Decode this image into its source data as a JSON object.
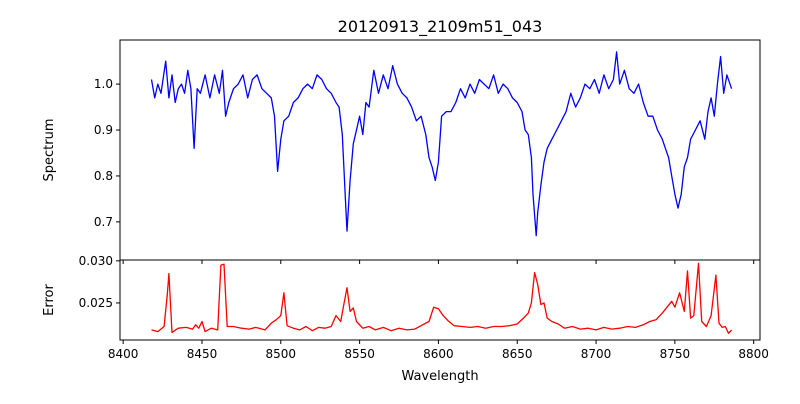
{
  "chart_data": [
    {
      "type": "line",
      "panel": "top",
      "title": "20120913_2109m51_043",
      "xlabel": "",
      "ylabel": "Spectrum",
      "xlim": [
        8398,
        8804
      ],
      "ylim": [
        0.617,
        1.096
      ],
      "xticks": [
        8400,
        8450,
        8500,
        8550,
        8600,
        8650,
        8700,
        8750,
        8800
      ],
      "yticks": [
        0.7,
        0.8,
        0.9,
        1.0
      ],
      "ytick_labels": [
        "0.7",
        "0.8",
        "0.9",
        "1.0"
      ],
      "grid": false,
      "series": [
        {
          "name": "Spectrum",
          "color": "#0000ff",
          "x": [
            8418,
            8420,
            8422,
            8424,
            8427,
            8429,
            8431,
            8433,
            8435,
            8437,
            8439,
            8441,
            8443,
            8445,
            8447,
            8449,
            8452,
            8455,
            8458,
            8461,
            8463,
            8465,
            8467,
            8470,
            8473,
            8476,
            8479,
            8482,
            8485,
            8488,
            8491,
            8494,
            8496,
            8498,
            8500,
            8502,
            8505,
            8508,
            8511,
            8514,
            8517,
            8520,
            8523,
            8526,
            8529,
            8532,
            8535,
            8537,
            8539,
            8541,
            8542,
            8544,
            8546,
            8548,
            8550,
            8552,
            8554,
            8556,
            8559,
            8562,
            8565,
            8568,
            8571,
            8574,
            8577,
            8580,
            8583,
            8586,
            8589,
            8592,
            8594,
            8596,
            8598,
            8600,
            8602,
            8605,
            8608,
            8611,
            8614,
            8617,
            8620,
            8623,
            8626,
            8629,
            8632,
            8635,
            8638,
            8641,
            8644,
            8647,
            8650,
            8653,
            8655,
            8657,
            8659,
            8660,
            8662,
            8663,
            8665,
            8667,
            8669,
            8672,
            8675,
            8678,
            8681,
            8684,
            8687,
            8690,
            8693,
            8696,
            8699,
            8702,
            8705,
            8708,
            8711,
            8713,
            8715,
            8718,
            8721,
            8724,
            8727,
            8730,
            8733,
            8736,
            8739,
            8742,
            8744,
            8746,
            8748,
            8750,
            8752,
            8754,
            8756,
            8758,
            8760,
            8763,
            8766,
            8769,
            8771,
            8773,
            8775,
            8777,
            8779,
            8781,
            8783,
            8786
          ],
          "y": [
            1.01,
            0.97,
            1.0,
            0.98,
            1.05,
            0.97,
            1.02,
            0.96,
            0.99,
            1.0,
            0.98,
            1.03,
            0.99,
            0.86,
            0.99,
            0.98,
            1.02,
            0.97,
            1.02,
            0.98,
            1.03,
            0.93,
            0.96,
            0.99,
            1.0,
            1.02,
            0.97,
            1.01,
            1.02,
            0.99,
            0.98,
            0.97,
            0.93,
            0.81,
            0.88,
            0.92,
            0.93,
            0.96,
            0.97,
            0.99,
            1.0,
            0.99,
            1.02,
            1.01,
            0.99,
            0.98,
            0.96,
            0.95,
            0.89,
            0.75,
            0.68,
            0.79,
            0.87,
            0.9,
            0.93,
            0.89,
            0.96,
            0.95,
            1.03,
            0.98,
            1.02,
            0.99,
            1.04,
            1.0,
            0.98,
            0.97,
            0.95,
            0.92,
            0.93,
            0.89,
            0.84,
            0.82,
            0.79,
            0.83,
            0.93,
            0.94,
            0.94,
            0.96,
            0.99,
            0.97,
            1.0,
            0.98,
            1.01,
            1.0,
            0.99,
            1.02,
            0.98,
            1.0,
            0.99,
            0.97,
            0.96,
            0.94,
            0.9,
            0.89,
            0.84,
            0.76,
            0.67,
            0.72,
            0.78,
            0.83,
            0.86,
            0.88,
            0.9,
            0.92,
            0.94,
            0.98,
            0.95,
            0.97,
            1.0,
            0.99,
            1.01,
            0.98,
            1.02,
            0.99,
            1.01,
            1.07,
            1.0,
            1.03,
            0.99,
            0.98,
            1.0,
            0.96,
            0.93,
            0.93,
            0.9,
            0.88,
            0.86,
            0.84,
            0.8,
            0.76,
            0.73,
            0.76,
            0.82,
            0.84,
            0.88,
            0.9,
            0.92,
            0.88,
            0.94,
            0.97,
            0.93,
            1.0,
            1.06,
            0.98,
            1.02,
            0.99
          ]
        }
      ]
    },
    {
      "type": "line",
      "panel": "bottom",
      "title": "",
      "xlabel": "Wavelength",
      "ylabel": "Error",
      "xlim": [
        8398,
        8804
      ],
      "ylim": [
        0.0206,
        0.0301
      ],
      "xticks": [
        8400,
        8450,
        8500,
        8550,
        8600,
        8650,
        8700,
        8750,
        8800
      ],
      "xtick_labels": [
        "8400",
        "8450",
        "8500",
        "8550",
        "8600",
        "8650",
        "8700",
        "8750",
        "8800"
      ],
      "yticks": [
        0.025,
        0.03
      ],
      "ytick_labels": [
        "0.025",
        "0.030"
      ],
      "grid": false,
      "series": [
        {
          "name": "Error",
          "color": "#ff0000",
          "x": [
            8418,
            8422,
            8426,
            8428,
            8429,
            8431,
            8435,
            8440,
            8444,
            8446,
            8448,
            8450,
            8452,
            8456,
            8460,
            8462,
            8464,
            8466,
            8470,
            8475,
            8480,
            8484,
            8490,
            8494,
            8497,
            8500,
            8502,
            8504,
            8508,
            8512,
            8516,
            8520,
            8524,
            8528,
            8532,
            8535,
            8538,
            8540,
            8542,
            8544,
            8546,
            8548,
            8552,
            8556,
            8560,
            8565,
            8570,
            8575,
            8580,
            8585,
            8590,
            8594,
            8597,
            8600,
            8603,
            8606,
            8610,
            8615,
            8620,
            8625,
            8630,
            8635,
            8640,
            8645,
            8650,
            8654,
            8657,
            8659,
            8661,
            8663,
            8665,
            8667,
            8669,
            8672,
            8676,
            8680,
            8685,
            8690,
            8695,
            8700,
            8705,
            8710,
            8715,
            8720,
            8725,
            8730,
            8734,
            8738,
            8742,
            8745,
            8748,
            8750,
            8753,
            8756,
            8758,
            8760,
            8762,
            8765,
            8767,
            8770,
            8773,
            8776,
            8778,
            8780,
            8782,
            8784,
            8786
          ],
          "y": [
            0.0218,
            0.0216,
            0.0222,
            0.026,
            0.0285,
            0.0215,
            0.022,
            0.0221,
            0.0219,
            0.0224,
            0.022,
            0.0228,
            0.0216,
            0.022,
            0.0218,
            0.0295,
            0.0296,
            0.0222,
            0.0222,
            0.022,
            0.0219,
            0.0221,
            0.0218,
            0.0226,
            0.023,
            0.0235,
            0.0262,
            0.0223,
            0.022,
            0.0218,
            0.0222,
            0.0217,
            0.0221,
            0.022,
            0.0222,
            0.0235,
            0.0228,
            0.0248,
            0.0268,
            0.024,
            0.0244,
            0.0228,
            0.022,
            0.0222,
            0.0218,
            0.0221,
            0.0217,
            0.022,
            0.0218,
            0.0219,
            0.0224,
            0.0228,
            0.0245,
            0.0243,
            0.0235,
            0.0229,
            0.0223,
            0.0222,
            0.0221,
            0.0222,
            0.022,
            0.0222,
            0.0222,
            0.0223,
            0.0225,
            0.0232,
            0.0238,
            0.025,
            0.0286,
            0.0272,
            0.0248,
            0.025,
            0.0232,
            0.0228,
            0.0225,
            0.022,
            0.0222,
            0.0219,
            0.022,
            0.0218,
            0.0221,
            0.0219,
            0.022,
            0.0222,
            0.0221,
            0.0224,
            0.0228,
            0.023,
            0.0238,
            0.0245,
            0.0252,
            0.0245,
            0.0262,
            0.024,
            0.0288,
            0.0232,
            0.0235,
            0.0297,
            0.0228,
            0.0222,
            0.0235,
            0.0283,
            0.0226,
            0.0221,
            0.0222,
            0.0214,
            0.0218
          ]
        }
      ]
    }
  ]
}
